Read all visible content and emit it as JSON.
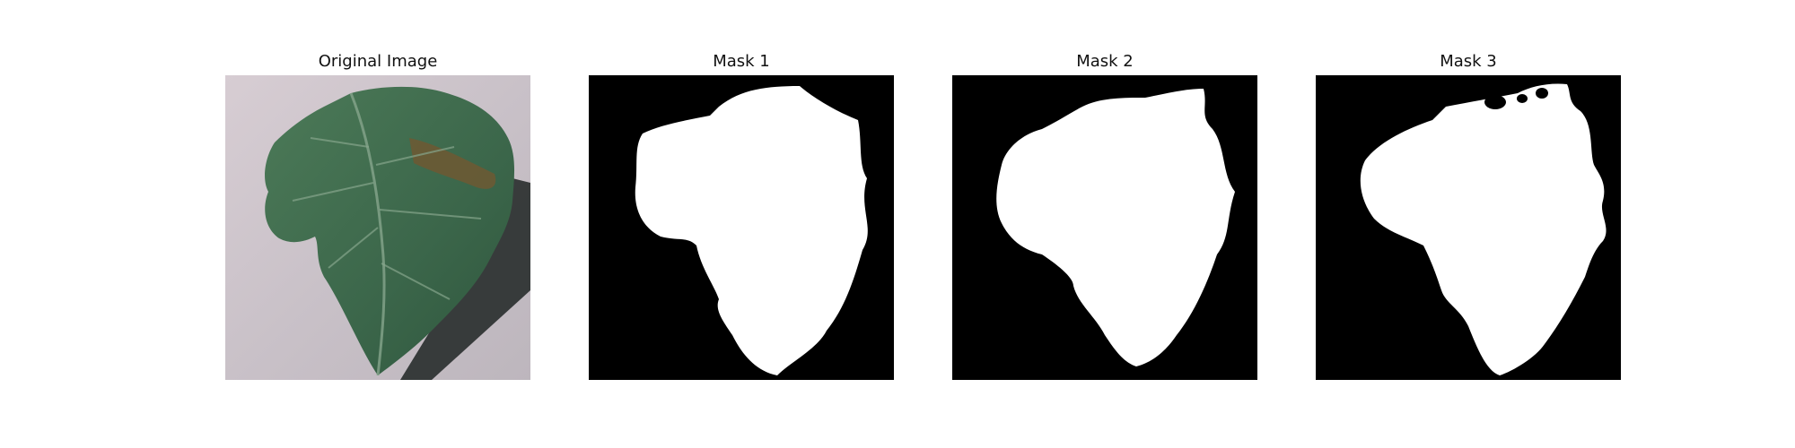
{
  "panels": [
    {
      "title": "Original Image"
    },
    {
      "title": "Mask 1"
    },
    {
      "title": "Mask 2"
    },
    {
      "title": "Mask 3"
    }
  ],
  "colors": {
    "background": "#ffffff",
    "mask_background": "#000000",
    "mask_foreground": "#ffffff",
    "photo_backdrop": "#cfc6cc",
    "leaf_green": "#3f6a4c",
    "lesion_brown": "#6b5a34"
  }
}
